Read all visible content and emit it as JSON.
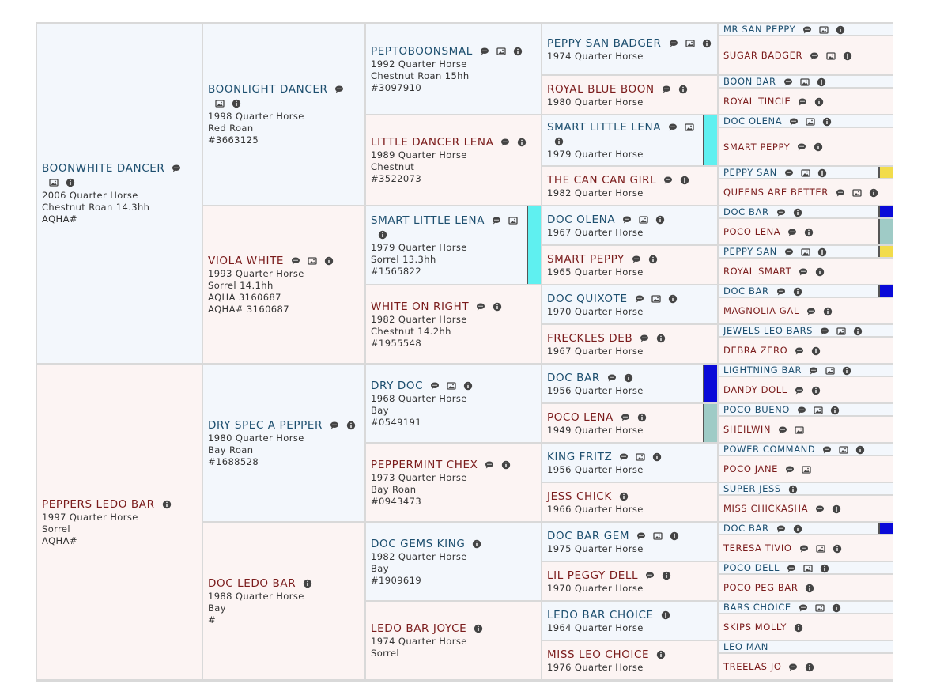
{
  "generations": [
    [
      {
        "name": "BOONWHITE DANCER",
        "lines": [
          "2006 Quarter Horse",
          "Chestnut Roan 14.3hh",
          "AQHA#"
        ]
      },
      {
        "name": "PEPPERS LEDO BAR",
        "lines": [
          "1997 Quarter Horse",
          "Sorrel",
          "AQHA#"
        ]
      }
    ],
    [
      {
        "name": "BOONLIGHT DANCER",
        "lines": [
          "1998 Quarter Horse",
          "Red Roan",
          "#3663125"
        ]
      },
      {
        "name": "VIOLA WHITE",
        "lines": [
          "1993 Quarter Horse",
          "Sorrel 14.1hh",
          "AQHA 3160687",
          "AQHA# 3160687"
        ]
      },
      {
        "name": "DRY SPEC A PEPPER",
        "lines": [
          "1980 Quarter Horse",
          "Bay Roan",
          "#1688528"
        ]
      },
      {
        "name": "DOC LEDO BAR",
        "lines": [
          "1988 Quarter Horse",
          "Bay",
          "#"
        ]
      }
    ],
    [
      {
        "name": "PEPTOBOONSMAL",
        "lines": [
          "1992 Quarter Horse",
          "Chestnut Roan 15hh",
          "#3097910"
        ]
      },
      {
        "name": "LITTLE DANCER LENA",
        "lines": [
          "1989 Quarter Horse",
          "Chestnut",
          "#3522073"
        ]
      },
      {
        "name": "SMART LITTLE LENA",
        "lines": [
          "1979 Quarter Horse",
          "Sorrel 13.3hh",
          "#1565822"
        ],
        "marker": "#5ff0f0"
      },
      {
        "name": "WHITE ON RIGHT",
        "lines": [
          "1982 Quarter Horse",
          "Chestnut 14.2hh",
          "#1955548"
        ]
      },
      {
        "name": "DRY DOC",
        "lines": [
          "1968 Quarter Horse",
          "Bay",
          "#0549191"
        ]
      },
      {
        "name": "PEPPERMINT CHEX",
        "lines": [
          "1973 Quarter Horse",
          "Bay Roan",
          "#0943473"
        ]
      },
      {
        "name": "DOC GEMS KING",
        "lines": [
          "1982 Quarter Horse",
          "Bay",
          "#1909619"
        ]
      },
      {
        "name": "LEDO BAR JOYCE",
        "lines": [
          "1974 Quarter Horse",
          "Sorrel"
        ]
      }
    ],
    [
      {
        "name": "PEPPY SAN BADGER",
        "lines": [
          "1974 Quarter Horse"
        ]
      },
      {
        "name": "ROYAL BLUE BOON",
        "lines": [
          "1980 Quarter Horse"
        ]
      },
      {
        "name": "SMART LITTLE LENA",
        "lines": [
          "1979 Quarter Horse"
        ],
        "marker": "#5ff0f0"
      },
      {
        "name": "THE CAN CAN GIRL",
        "lines": [
          "1982 Quarter Horse"
        ]
      },
      {
        "name": "DOC OLENA",
        "lines": [
          "1967 Quarter Horse"
        ]
      },
      {
        "name": "SMART PEPPY",
        "lines": [
          "1965 Quarter Horse"
        ]
      },
      {
        "name": "DOC QUIXOTE",
        "lines": [
          "1970 Quarter Horse"
        ]
      },
      {
        "name": "FRECKLES DEB",
        "lines": [
          "1967 Quarter Horse"
        ]
      },
      {
        "name": "DOC BAR",
        "lines": [
          "1956 Quarter Horse"
        ],
        "marker": "#0a0ad8"
      },
      {
        "name": "POCO LENA",
        "lines": [
          "1949 Quarter Horse"
        ],
        "marker": "#9fcbc6"
      },
      {
        "name": "KING FRITZ",
        "lines": [
          "1956 Quarter Horse"
        ]
      },
      {
        "name": "JESS CHICK",
        "lines": [
          "1966 Quarter Horse"
        ]
      },
      {
        "name": "DOC BAR GEM",
        "lines": [
          "1975 Quarter Horse"
        ]
      },
      {
        "name": "LIL PEGGY DELL",
        "lines": [
          "1970 Quarter Horse"
        ]
      },
      {
        "name": "LEDO BAR CHOICE",
        "lines": [
          "1964 Quarter Horse"
        ]
      },
      {
        "name": "MISS LEO CHOICE",
        "lines": [
          "1976 Quarter Horse"
        ]
      }
    ],
    [
      {
        "name": "MR SAN PEPPY"
      },
      {
        "name": "SUGAR BADGER"
      },
      {
        "name": "BOON BAR"
      },
      {
        "name": "ROYAL TINCIE"
      },
      {
        "name": "DOC OLENA"
      },
      {
        "name": "SMART PEPPY"
      },
      {
        "name": "PEPPY SAN",
        "marker": "#f2dc4c"
      },
      {
        "name": "QUEENS ARE BETTER"
      },
      {
        "name": "DOC BAR",
        "marker": "#0a0ad8"
      },
      {
        "name": "POCO LENA",
        "marker": "#9fcbc6"
      },
      {
        "name": "PEPPY SAN",
        "marker": "#f2dc4c"
      },
      {
        "name": "ROYAL SMART"
      },
      {
        "name": "DOC BAR",
        "marker": "#0a0ad8"
      },
      {
        "name": "MAGNOLIA GAL"
      },
      {
        "name": "JEWELS LEO BARS"
      },
      {
        "name": "DEBRA ZERO"
      },
      {
        "name": "LIGHTNING BAR"
      },
      {
        "name": "DANDY DOLL"
      },
      {
        "name": "POCO BUENO"
      },
      {
        "name": "SHEILWIN"
      },
      {
        "name": "POWER COMMAND"
      },
      {
        "name": "POCO JANE"
      },
      {
        "name": "SUPER JESS"
      },
      {
        "name": "MISS CHICKASHA"
      },
      {
        "name": "DOC BAR",
        "marker": "#0a0ad8"
      },
      {
        "name": "TERESA TIVIO"
      },
      {
        "name": "POCO DELL"
      },
      {
        "name": "POCO PEG BAR"
      },
      {
        "name": "BARS CHOICE"
      },
      {
        "name": "SKIPS MOLLY"
      },
      {
        "name": "LEO MAN"
      },
      {
        "name": "TREELAS JO"
      }
    ]
  ]
}
